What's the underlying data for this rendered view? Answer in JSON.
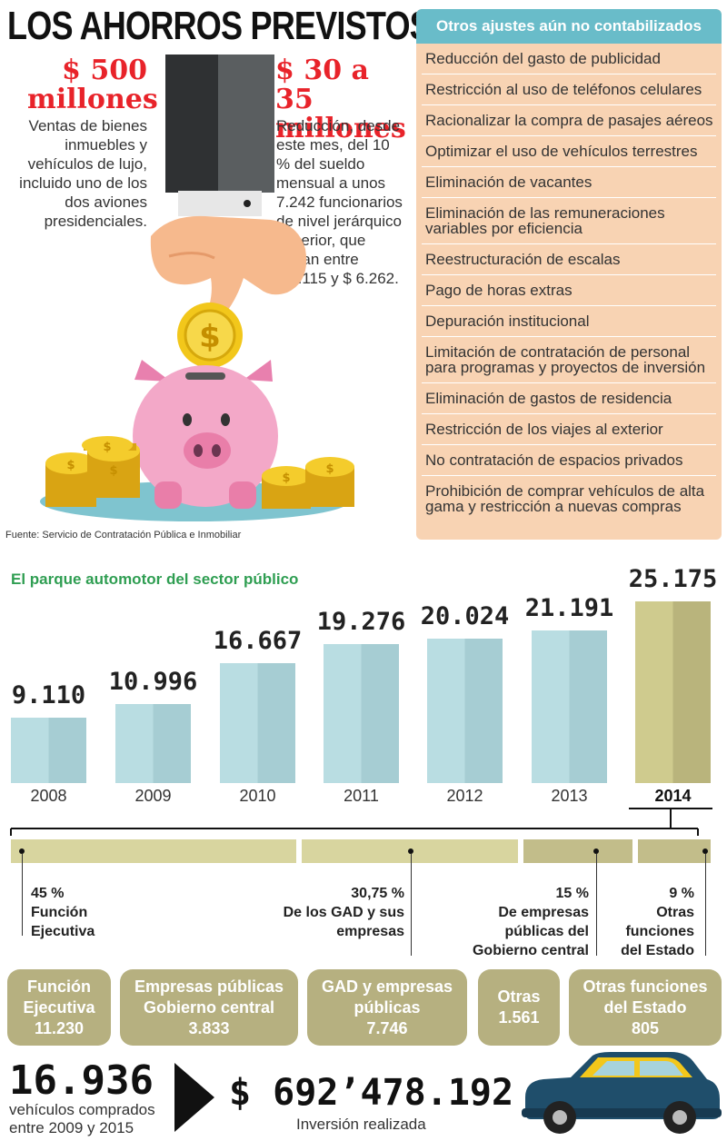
{
  "title": "LOS AHORROS PREVISTOS",
  "left_block": {
    "amount": "$ 500\nmillones",
    "amount_line1": "$ 500",
    "amount_line2": "millones",
    "text": [
      "Ventas de bienes",
      "inmuebles y",
      "vehículos de lujo,",
      "incluido uno de los",
      "dos aviones",
      "presidenciales."
    ]
  },
  "mid_block": {
    "amount_line1": "$ 30 a 35",
    "amount_line2": "millones",
    "text": [
      "Reducción, desde",
      "este mes, del 10",
      "% del sueldo",
      "mensual a unos",
      "7.242 funcionarios",
      "de nivel jerárquico",
      "superior, que",
      "ganan entre",
      "$ 2.115 y $ 6.262."
    ]
  },
  "panel": {
    "header": "Otros ajustes aún no contabilizados",
    "items": [
      "Reducción del gasto de publicidad",
      "Restricción al uso de teléfonos celulares",
      "Racionalizar la compra de pasajes aéreos",
      "Optimizar el uso de vehículos terrestres",
      "Eliminación de vacantes",
      "Eliminación de las remuneraciones variables por eficiencia",
      "Reestructuración de escalas",
      "Pago de horas extras",
      "Depuración institucional",
      "Limitación de contratación de personal para programas y proyectos de inversión",
      "Eliminación de gastos de residencia",
      "Restricción de los viajes al exterior",
      "No contratación de espacios privados",
      "Prohibición de comprar vehículos de alta gama y restricción a nuevas compras"
    ]
  },
  "source": "Fuente: Servicio de Contratación Pública e Inmobiliar",
  "chart_data": {
    "type": "bar",
    "title": "El parque automotor del sector público",
    "categories": [
      "2008",
      "2009",
      "2010",
      "2011",
      "2012",
      "2013",
      "2014"
    ],
    "values": [
      9110,
      10996,
      16667,
      19276,
      20024,
      21191,
      25175
    ],
    "value_labels": [
      "9.110",
      "10.996",
      "16.667",
      "19.276",
      "20.024",
      "21.191",
      "25.175"
    ],
    "highlight": "2014",
    "colors": {
      "bar": "#b9dde2",
      "bar_shade": "#a6cdd3",
      "highlight": "#cfcb8e",
      "highlight_shade": "#b9b47c"
    }
  },
  "distribution": [
    {
      "pct": "45 %",
      "label": [
        "Función",
        "Ejecutiva"
      ]
    },
    {
      "pct": "30,75 %",
      "label": [
        "De los GAD y sus",
        "empresas"
      ]
    },
    {
      "pct": "15 %",
      "label": [
        "De empresas",
        "públicas del",
        "Gobierno central"
      ]
    },
    {
      "pct": "9 %",
      "label": [
        "Otras",
        "funciones",
        "del Estado"
      ]
    }
  ],
  "pills": [
    {
      "lines": [
        "Función",
        "Ejecutiva",
        "11.230"
      ]
    },
    {
      "lines": [
        "Empresas públicas",
        "Gobierno central",
        "3.833"
      ]
    },
    {
      "lines": [
        "GAD y empresas",
        "públicas",
        "7.746"
      ]
    },
    {
      "lines": [
        "Otras",
        "1.561"
      ]
    },
    {
      "lines": [
        "Otras funciones",
        "del Estado",
        "805"
      ]
    }
  ],
  "footer": {
    "vehicles_number": "16.936",
    "vehicles_caption": [
      "vehículos comprados",
      "entre 2009 y 2015"
    ],
    "investment": "$ 692’478.192",
    "investment_caption": "Inversión realizada"
  },
  "icons": {
    "hand": "hand-icon",
    "coin": "dollar-coin-icon",
    "piggy": "piggy-bank-icon",
    "car": "car-icon",
    "arrow": "arrow-right-icon"
  }
}
